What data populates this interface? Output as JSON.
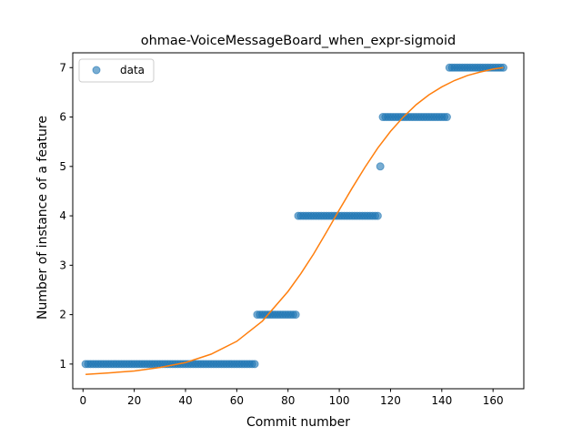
{
  "chart_data": {
    "type": "scatter",
    "title": "ohmae-VoiceMessageBoard_when_expr-sigmoid",
    "xlabel": "Commit number",
    "ylabel": "Number of instance of a feature",
    "xlim": [
      -4,
      172
    ],
    "ylim": [
      0.5,
      7.3
    ],
    "xticks": [
      0,
      20,
      40,
      60,
      80,
      100,
      120,
      140,
      160
    ],
    "yticks": [
      1,
      2,
      3,
      4,
      5,
      6,
      7
    ],
    "legend": {
      "placement": "top-left",
      "entries": [
        "data"
      ]
    },
    "colors": {
      "data": "#1f77b4",
      "fit": "#ff7f0e"
    },
    "series": [
      {
        "name": "data",
        "kind": "points",
        "segments": [
          {
            "x_from": 1,
            "x_to": 67,
            "y": 1
          },
          {
            "x_from": 68,
            "x_to": 83,
            "y": 2
          },
          {
            "x_from": 84,
            "x_to": 115,
            "y": 4
          },
          {
            "x_from": 116,
            "x_to": 116,
            "y": 5
          },
          {
            "x_from": 117,
            "x_to": 142,
            "y": 6
          },
          {
            "x_from": 143,
            "x_to": 164,
            "y": 7
          }
        ]
      },
      {
        "kind": "line",
        "x": [
          1,
          10,
          20,
          30,
          40,
          50,
          60,
          70,
          80,
          85,
          90,
          95,
          100,
          105,
          110,
          115,
          120,
          125,
          130,
          135,
          140,
          145,
          150,
          155,
          160,
          164
        ],
        "y": [
          0.79,
          0.82,
          0.86,
          0.93,
          1.03,
          1.2,
          1.46,
          1.87,
          2.47,
          2.83,
          3.23,
          3.67,
          4.12,
          4.56,
          4.98,
          5.37,
          5.71,
          6.0,
          6.25,
          6.45,
          6.61,
          6.74,
          6.84,
          6.91,
          6.97,
          7.0
        ]
      }
    ]
  }
}
